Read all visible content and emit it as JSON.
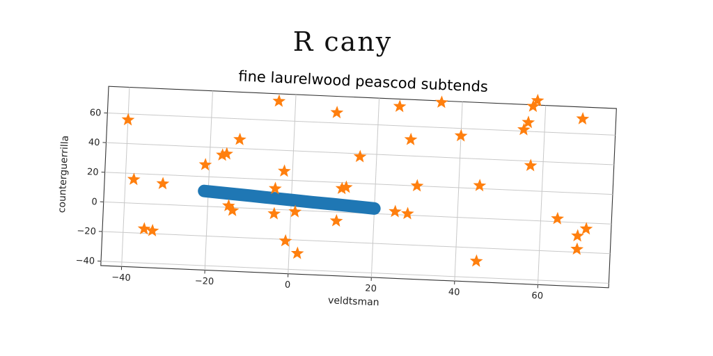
{
  "page_title": "R cany",
  "chart_data": {
    "type": "scatter",
    "title": "fine laurelwood peascod subtends",
    "xlabel": "veldtsman",
    "ylabel": "counterguerrilla",
    "xlim": [
      -45,
      77
    ],
    "ylim": [
      -43,
      78
    ],
    "xticks": [
      -40,
      -20,
      0,
      20,
      40,
      60
    ],
    "yticks": [
      -40,
      -20,
      0,
      20,
      40,
      60
    ],
    "grid": true,
    "colors": {
      "line": "#1f77b4",
      "stars": "#ff7f0e"
    },
    "series": [
      {
        "type": "line",
        "x": [
          -21,
          -15,
          -10,
          -5,
          0,
          5,
          10,
          15,
          20
        ],
        "y": [
          10.3,
          9.3,
          8.5,
          7.6,
          6.8,
          5.9,
          5.2,
          4.4,
          3.5
        ]
      },
      {
        "type": "scatter",
        "marker": "star",
        "points": [
          [
            -40,
            56
          ],
          [
            -38,
            16
          ],
          [
            -31,
            14
          ],
          [
            -35,
            -17
          ],
          [
            -33,
            -18
          ],
          [
            -21,
            28
          ],
          [
            -17,
            35
          ],
          [
            -16,
            36
          ],
          [
            -13,
            46
          ],
          [
            -15,
            1
          ],
          [
            -14,
            -2
          ],
          [
            -4,
            73
          ],
          [
            -4,
            14
          ],
          [
            -2,
            26
          ],
          [
            -4,
            -3
          ],
          [
            -1,
            -21
          ],
          [
            1,
            -1
          ],
          [
            2,
            -29
          ],
          [
            10,
            67
          ],
          [
            11,
            -6
          ],
          [
            12,
            16
          ],
          [
            13,
            17
          ],
          [
            16,
            38
          ],
          [
            25,
            73
          ],
          [
            25,
            2
          ],
          [
            28,
            1
          ],
          [
            28,
            51
          ],
          [
            30,
            20
          ],
          [
            35,
            77
          ],
          [
            40,
            55
          ],
          [
            45,
            22
          ],
          [
            45,
            -29
          ],
          [
            55,
            61
          ],
          [
            56,
            66
          ],
          [
            57,
            37
          ],
          [
            57,
            77
          ],
          [
            58,
            81
          ],
          [
            64,
            2
          ],
          [
            69,
            70
          ],
          [
            69,
            -9
          ],
          [
            69,
            -18
          ],
          [
            71,
            -4
          ]
        ]
      }
    ]
  }
}
